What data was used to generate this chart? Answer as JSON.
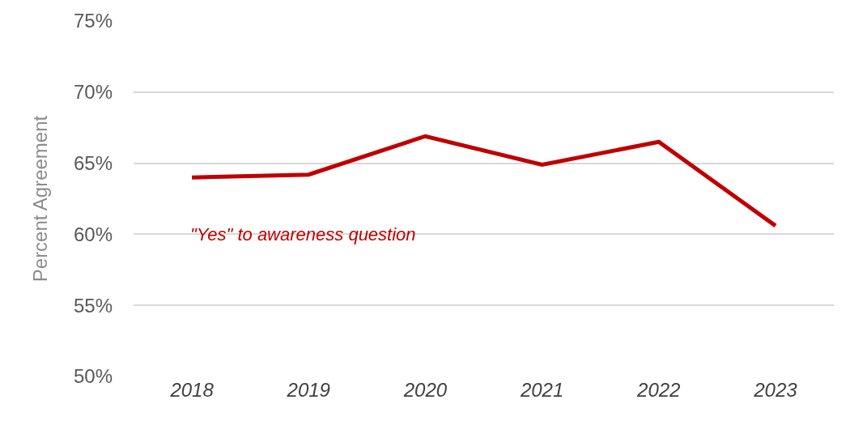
{
  "chart_data": {
    "type": "line",
    "ylabel": "Percent Agreement",
    "categories": [
      "2018",
      "2019",
      "2020",
      "2021",
      "2022",
      "2023"
    ],
    "series": [
      {
        "name": "\"Yes\" to awareness question",
        "color": "#c00000",
        "values": [
          64.0,
          64.2,
          66.9,
          64.9,
          66.5,
          60.6
        ]
      }
    ],
    "ylim": [
      50,
      75
    ],
    "yticks": [
      {
        "value": 50,
        "label": "50%"
      },
      {
        "value": 55,
        "label": "55%"
      },
      {
        "value": 60,
        "label": "60%"
      },
      {
        "value": 65,
        "label": "65%"
      },
      {
        "value": 70,
        "label": "70%"
      },
      {
        "value": 75,
        "label": "75%"
      }
    ],
    "grid": "y",
    "legend": false,
    "marker": "none",
    "line_style": "solid"
  }
}
